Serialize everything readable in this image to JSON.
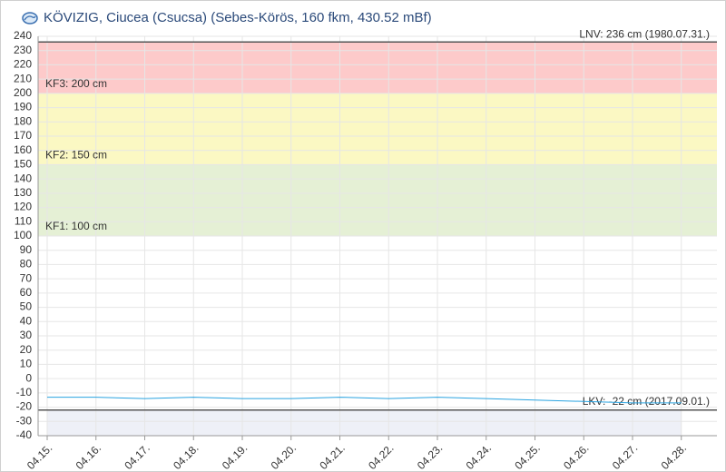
{
  "chart_data": {
    "type": "line",
    "title": "KÖVIZIG, Ciucea (Csucsa) (Sebes-Körös, 160 fkm, 430.52 mBf)",
    "categories": [
      "04.15.",
      "04.16.",
      "04.17.",
      "04.18.",
      "04.19.",
      "04.20.",
      "04.21.",
      "04.22.",
      "04.23.",
      "04.24.",
      "04.25.",
      "04.26.",
      "04.27.",
      "04.28."
    ],
    "values": [
      -13,
      -13,
      -14,
      -13,
      -14,
      -14,
      -13,
      -14,
      -13,
      -14,
      -15,
      -16,
      -17,
      -17
    ],
    "color": "#29a3e0",
    "ylim": [
      -40,
      240
    ],
    "yticks": [
      -40,
      -30,
      -20,
      -10,
      0,
      10,
      20,
      30,
      40,
      50,
      60,
      70,
      80,
      90,
      100,
      110,
      120,
      130,
      140,
      150,
      160,
      170,
      180,
      190,
      200,
      210,
      220,
      230,
      240
    ],
    "grid": true,
    "thresholds": [
      {
        "label": "KF1: 100 cm",
        "value": 100,
        "color": "#e5f0d5"
      },
      {
        "label": "KF2: 150 cm",
        "value": 150,
        "color": "#fbf8c3"
      },
      {
        "label": "KF3: 200 cm",
        "value": 200,
        "color": "#fdcaca"
      }
    ],
    "max_level": {
      "label": "LNV: 236 cm (1980.07.31.)",
      "value": 236
    },
    "min_level": {
      "label": "LKV: -22 cm (2017.09.01.)",
      "value": -22
    }
  }
}
